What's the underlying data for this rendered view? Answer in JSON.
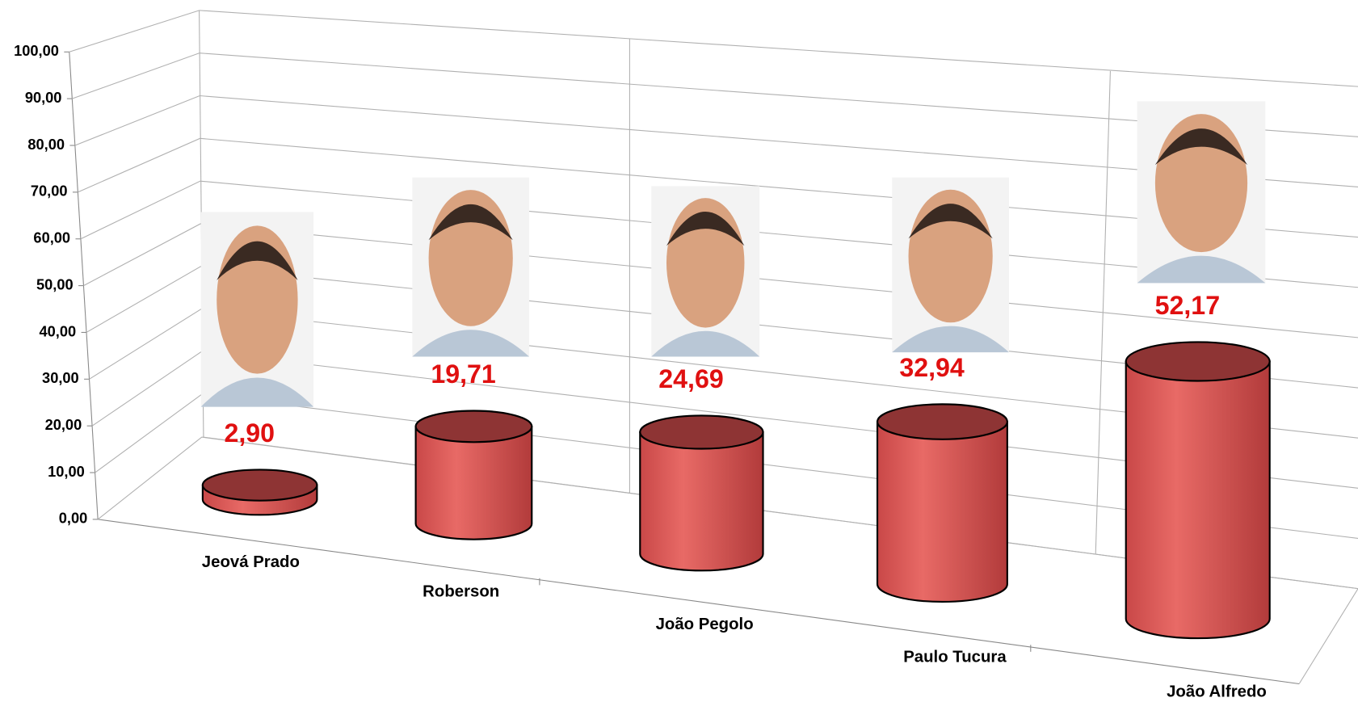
{
  "chart_data": {
    "type": "cylinder",
    "categories": [
      "Jeová Prado",
      "Roberson",
      "João Pegolo",
      "Paulo Tucura",
      "João Alfredo"
    ],
    "values": [
      2.9,
      19.71,
      24.69,
      32.94,
      52.17
    ],
    "value_labels": [
      "2,90",
      "19,71",
      "24,69",
      "32,94",
      "52,17"
    ],
    "color": "#d9534f",
    "ylim": [
      0,
      100
    ],
    "yticks": [
      {
        "value": 0,
        "label": "0,00"
      },
      {
        "value": 10,
        "label": "10,00"
      },
      {
        "value": 20,
        "label": "20,00"
      },
      {
        "value": 30,
        "label": "30,00"
      },
      {
        "value": 40,
        "label": "40,00"
      },
      {
        "value": 50,
        "label": "50,00"
      },
      {
        "value": 60,
        "label": "60,00"
      },
      {
        "value": 70,
        "label": "70,00"
      },
      {
        "value": 80,
        "label": "80,00"
      },
      {
        "value": 90,
        "label": "90,00"
      },
      {
        "value": 100,
        "label": "100,00"
      }
    ],
    "grid": true
  }
}
